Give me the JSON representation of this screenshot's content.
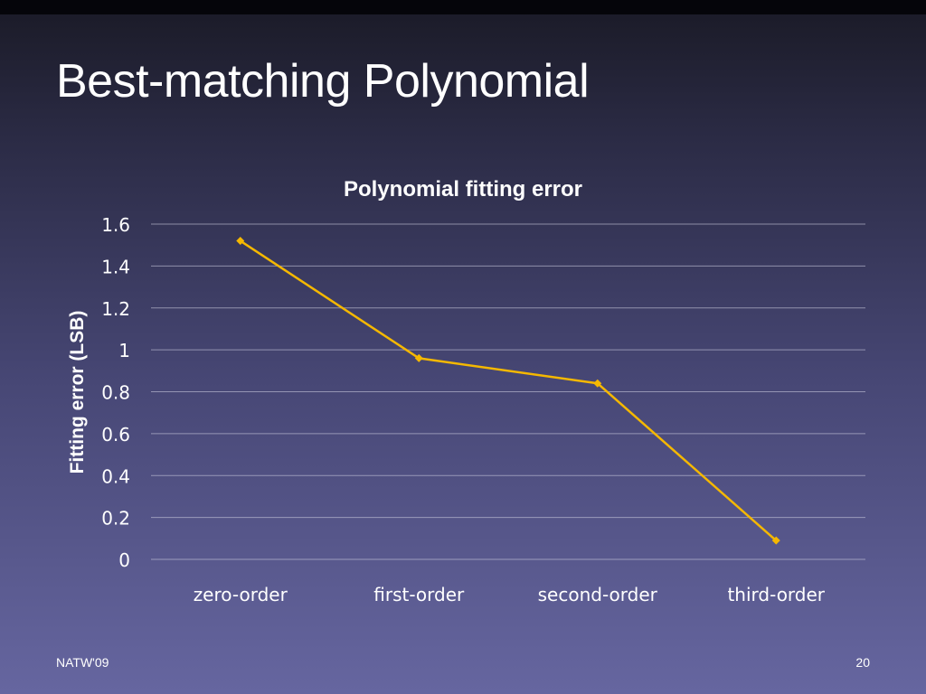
{
  "slide": {
    "title": "Best-matching Polynomial",
    "footer_left": "NATW'09",
    "page_number": "20"
  },
  "chart_data": {
    "type": "line",
    "title": "Polynomial fitting error",
    "xlabel": "",
    "ylabel": "Fitting error (LSB)",
    "categories": [
      "zero-order",
      "first-order",
      "second-order",
      "third-order"
    ],
    "series": [
      {
        "values": [
          1.52,
          0.96,
          0.84,
          0.09
        ]
      }
    ],
    "ylim": [
      0,
      1.6
    ],
    "yticks": [
      "0",
      "0.2",
      "0.4",
      "0.6",
      "0.8",
      "1",
      "1.2",
      "1.4",
      "1.6"
    ],
    "grid": true,
    "legend": "none",
    "colors": {
      "line": "#f5b800",
      "marker": "#f5b800",
      "grid": "#c8c8dc"
    }
  }
}
